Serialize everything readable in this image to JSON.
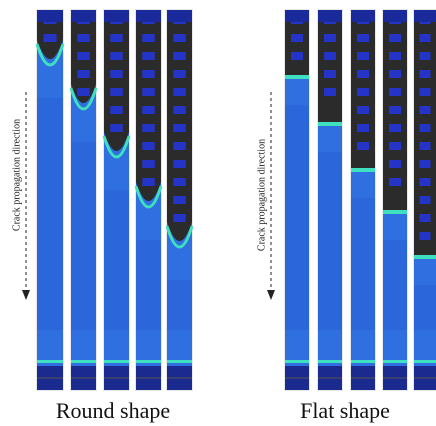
{
  "panels": [
    {
      "axis_label": "Crack propagation direction",
      "caption": "Round shape"
    },
    {
      "axis_label": "Crack propagation direction",
      "caption": "Flat shape"
    }
  ]
}
